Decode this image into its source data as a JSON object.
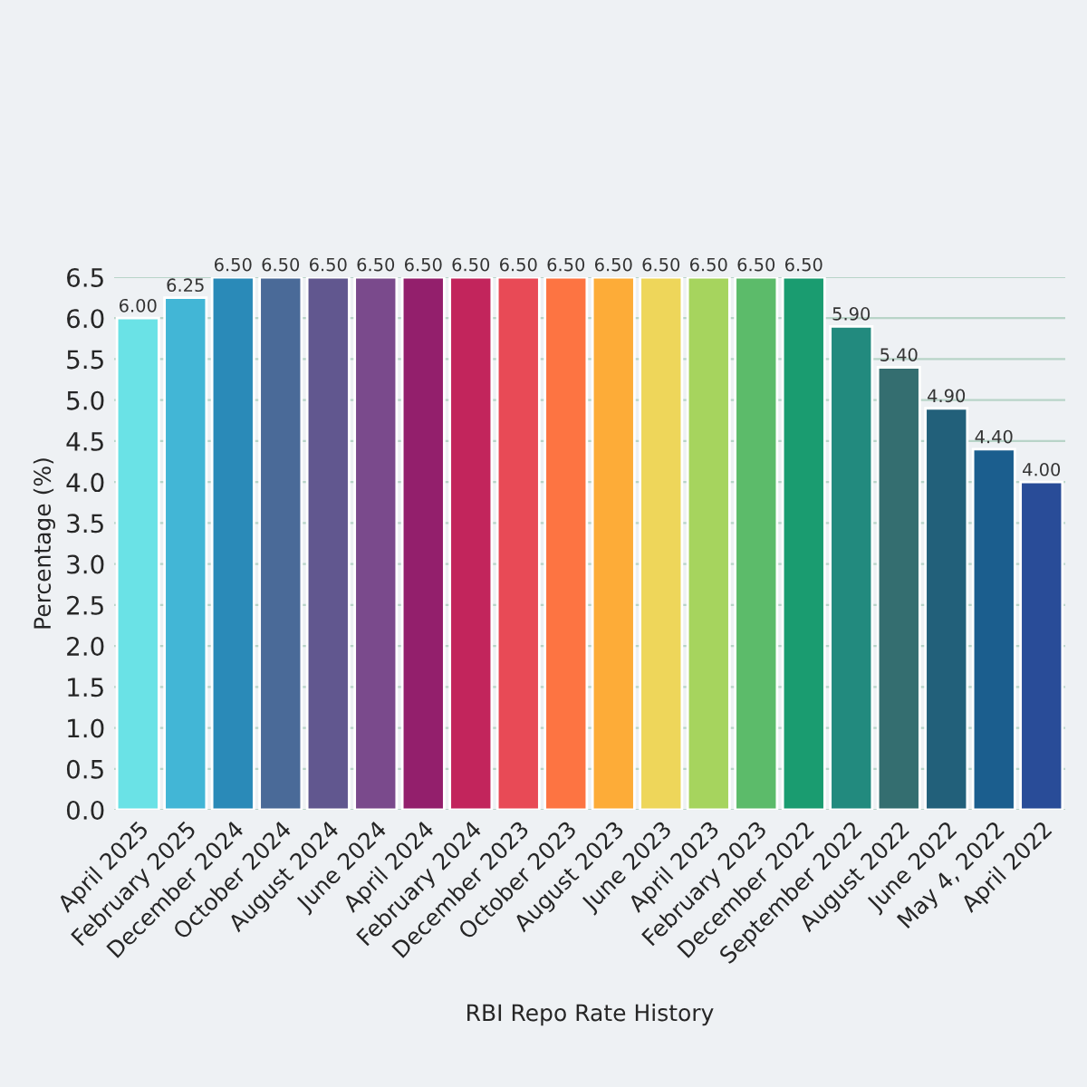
{
  "chart_data": {
    "type": "bar",
    "xlabel": "RBI Repo Rate History",
    "ylabel": "Percentage (%)",
    "categories": [
      "April 2025",
      "February 2025",
      "December 2024",
      "October 2024",
      "August 2024",
      "June 2024",
      "April 2024",
      "February 2024",
      "December 2023",
      "October 2023",
      "August 2023",
      "June 2023",
      "April 2023",
      "February 2023",
      "December 2022",
      "September 2022",
      "August 2022",
      "June 2022",
      "May 4, 2022",
      "April 2022"
    ],
    "values": [
      6.0,
      6.25,
      6.5,
      6.5,
      6.5,
      6.5,
      6.5,
      6.5,
      6.5,
      6.5,
      6.5,
      6.5,
      6.5,
      6.5,
      6.5,
      5.9,
      5.4,
      4.9,
      4.4,
      4.0
    ],
    "value_labels": [
      "6.00",
      "6.25",
      "6.50",
      "6.50",
      "6.50",
      "6.50",
      "6.50",
      "6.50",
      "6.50",
      "6.50",
      "6.50",
      "6.50",
      "6.50",
      "6.50",
      "6.50",
      "5.90",
      "5.40",
      "4.90",
      "4.40",
      "4.00"
    ],
    "colors": [
      "#6ae2e6",
      "#42b6d6",
      "#2a8ab8",
      "#4a6a98",
      "#61578f",
      "#7a4a8c",
      "#931f6c",
      "#c2255c",
      "#e84a56",
      "#fd7442",
      "#fdac38",
      "#eed65a",
      "#a6d45e",
      "#5cbb6a",
      "#1a9c70",
      "#228a7e",
      "#346e70",
      "#22607a",
      "#1b5e8e",
      "#294c98"
    ],
    "ylim": [
      0,
      6.5
    ],
    "yticks": [
      {
        "value": 0,
        "label": "0.0"
      },
      0.5,
      {
        "value": 1,
        "label": "1.0"
      },
      1.5,
      {
        "value": 2,
        "label": "2.0"
      },
      2.5,
      {
        "value": 3,
        "label": "3.0"
      },
      3.5,
      {
        "value": 4,
        "label": "4.0"
      },
      4.5,
      {
        "value": 5,
        "label": "5.0"
      },
      5.5,
      {
        "value": 6,
        "label": "6.0"
      },
      6.5
    ],
    "grid": "y"
  }
}
